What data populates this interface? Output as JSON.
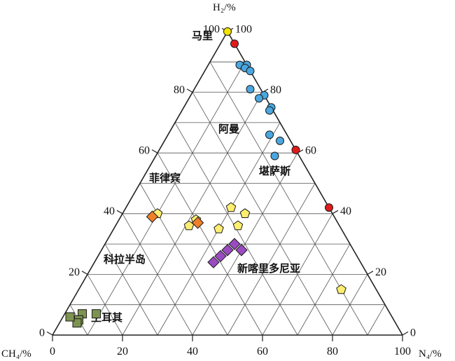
{
  "chart_data": {
    "type": "scatter",
    "subtype": "ternary",
    "axes": {
      "top_label": "H₂/%",
      "left_label": "CH₄/%",
      "right_label": "N₄/%"
    },
    "bottom_ticks": [
      "0",
      "20",
      "40",
      "60",
      "80",
      "100"
    ],
    "left_ticks": [
      "0",
      "20",
      "40",
      "60",
      "80",
      "100"
    ],
    "right_ticks": [
      "100",
      "80",
      "60",
      "40",
      "20",
      "0"
    ],
    "grid": true,
    "regions": [
      {
        "name": "马里",
        "marker": "circle",
        "color": "#f5e400",
        "points": [
          [
            0,
            100,
            0
          ]
        ]
      },
      {
        "name": "堪萨斯",
        "marker": "circle",
        "color": "#e01b1b",
        "points": [
          [
            0,
            96,
            4
          ],
          [
            0,
            61,
            39
          ],
          [
            0,
            42,
            58
          ]
        ]
      },
      {
        "name": "阿曼",
        "marker": "circle",
        "color": "#4aa7e0",
        "points": [
          [
            0,
            89,
            11
          ],
          [
            2,
            89,
            9
          ],
          [
            1,
            88,
            11
          ],
          [
            0,
            87,
            13
          ],
          [
            3,
            81,
            16
          ],
          [
            0,
            79,
            21
          ],
          [
            2,
            78,
            20
          ],
          [
            0,
            75,
            25
          ],
          [
            1,
            74,
            25
          ],
          [
            5,
            66,
            29
          ],
          [
            3,
            64,
            33
          ],
          [
            7,
            59,
            34
          ]
        ]
      },
      {
        "name": "菲律宾",
        "marker": "diamond",
        "color": "#f07f2a",
        "points": [
          [
            52,
            39,
            9
          ],
          [
            40,
            37,
            23
          ]
        ]
      },
      {
        "name": "科拉半岛",
        "marker": "pentagon",
        "color": "#ffee70",
        "points": [
          [
            50,
            40,
            10
          ],
          [
            43,
            36,
            21
          ],
          [
            40,
            38,
            22
          ],
          [
            35,
            35,
            30
          ],
          [
            29,
            36,
            35
          ],
          [
            25,
            40,
            35
          ],
          [
            28,
            42,
            30
          ],
          [
            10,
            15,
            75
          ]
        ]
      },
      {
        "name": "新喀里多尼亚",
        "marker": "diamond",
        "color": "#9b4bc0",
        "points": [
          [
            32,
            28,
            40
          ],
          [
            33,
            30,
            37
          ],
          [
            36,
            28,
            36
          ],
          [
            39,
            26,
            35
          ],
          [
            42,
            24,
            34
          ]
        ]
      },
      {
        "name": "土耳其",
        "marker": "square",
        "color": "#7d9450",
        "points": [
          [
            84,
            7,
            9
          ],
          [
            88,
            7,
            5
          ],
          [
            90,
            5,
            5
          ],
          [
            91,
            4,
            5
          ],
          [
            92,
            6,
            2
          ]
        ]
      }
    ],
    "labels": [
      "马里",
      "阿曼",
      "堪萨斯",
      "菲律宾",
      "科拉半岛",
      "新喀里多尼亚",
      "土耳其"
    ]
  }
}
